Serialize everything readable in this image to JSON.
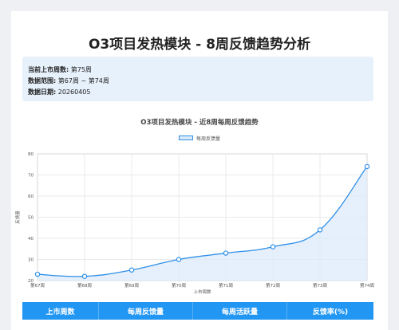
{
  "page_title": "O3项目发热模块 - 8周反馈趋势分析",
  "info": {
    "rows": [
      {
        "label": "当前上市周数:",
        "value": "第75周"
      },
      {
        "label": "数据范围:",
        "value": "第67周 ~ 第74周"
      },
      {
        "label": "数据日期:",
        "value": "20260405"
      }
    ]
  },
  "chart_data": {
    "type": "line",
    "title": "O3项目发热模块 - 近8周每周反馈趋势",
    "xlabel": "上市周数",
    "ylabel": "反馈量",
    "categories": [
      "第67周",
      "第68周",
      "第69周",
      "第70周",
      "第71周",
      "第72周",
      "第73周",
      "第74周"
    ],
    "series": [
      {
        "name": "每周反馈量",
        "values": [
          23,
          22,
          25,
          30,
          33,
          36,
          44,
          74
        ],
        "color": "#2f8fe6"
      }
    ],
    "ylim": [
      20,
      80
    ],
    "yticks": [
      20,
      30,
      40,
      50,
      60,
      70,
      80
    ],
    "grid": true,
    "legend_position": "top-center",
    "area_fill": true
  },
  "table": {
    "headers": [
      "上市周数",
      "每周反馈量",
      "每周活跃量",
      "反馈率(%)"
    ]
  }
}
